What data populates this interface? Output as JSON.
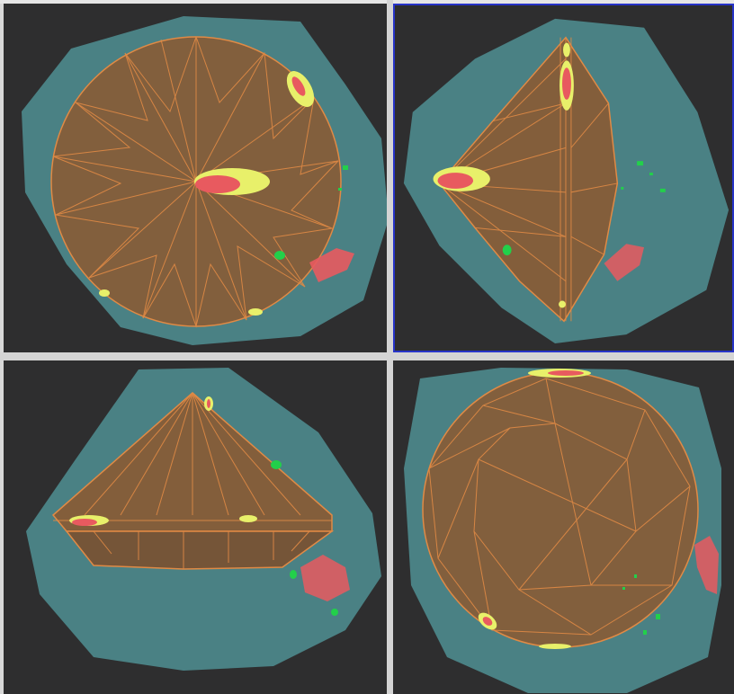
{
  "viewports": [
    {
      "id": "top-left",
      "active": false
    },
    {
      "id": "top-right",
      "active": true
    },
    {
      "id": "bottom-left",
      "active": false
    },
    {
      "id": "bottom-right",
      "active": false
    }
  ],
  "colors": {
    "background": "#2e2e2f",
    "rough_stone": "#4f8f93",
    "cut_gem": "#8a5a33",
    "facet_lines": "#e08a45",
    "inclusion_red": "#e85a5f",
    "inclusion_yellow": "#e8f06a",
    "inclusion_green": "#22d04a",
    "active_border": "#2733c8"
  }
}
